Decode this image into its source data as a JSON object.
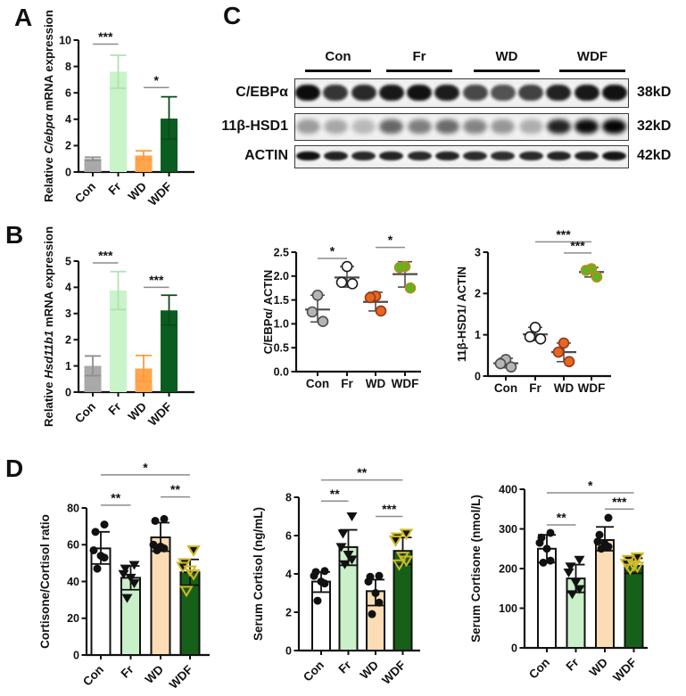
{
  "panels": {
    "A": {
      "label": "A"
    },
    "B": {
      "label": "B"
    },
    "C": {
      "label": "C"
    },
    "D": {
      "label": "D"
    }
  },
  "groups": [
    "Con",
    "Fr",
    "WD",
    "WDF"
  ],
  "blot": {
    "groups": [
      "Con",
      "Fr",
      "WD",
      "WDF"
    ],
    "rows": [
      {
        "protein": "C/EBPα",
        "kd": "38kD",
        "intensities": [
          0.97,
          0.8,
          0.85,
          0.92,
          0.95,
          0.9,
          0.72,
          0.68,
          0.75,
          0.88,
          0.92,
          0.95
        ]
      },
      {
        "protein": "11β-HSD1",
        "kd": "32kD",
        "intensities": [
          0.38,
          0.33,
          0.26,
          0.6,
          0.5,
          0.58,
          0.48,
          0.4,
          0.3,
          0.88,
          0.97,
          1.0
        ]
      },
      {
        "protein": "ACTIN",
        "kd": "42kD",
        "intensities": [
          0.95,
          0.88,
          0.85,
          0.88,
          0.85,
          0.87,
          0.84,
          0.83,
          0.85,
          0.87,
          0.88,
          0.93
        ]
      }
    ]
  },
  "chart_data": [
    {
      "id": "cebpa_mrna",
      "panel": "A",
      "type": "bar",
      "ylabel_parts": [
        {
          "t": "Relative ",
          "i": false
        },
        {
          "t": "C/ebpα",
          "i": true
        },
        {
          "t": " mRNA expression",
          "i": false
        }
      ],
      "categories": [
        "Con",
        "Fr",
        "WD",
        "WDF"
      ],
      "values": [
        1.0,
        7.6,
        1.25,
        4.05
      ],
      "errors": [
        [
          0.88,
          1.12
        ],
        [
          6.35,
          8.85
        ],
        [
          0.95,
          1.6
        ],
        [
          2.5,
          5.7
        ]
      ],
      "ylim": [
        0,
        10
      ],
      "yticks": [
        0,
        2,
        4,
        6,
        8,
        10
      ],
      "ytick_labels": [
        "0",
        "2",
        "4",
        "6",
        "8",
        "10"
      ],
      "bar_colors": [
        "#a9a9a9",
        "#c9f3c9",
        "#ffa54d",
        "#0b5c20"
      ],
      "err_colors": [
        "#8f8f8f",
        "#b2e0b2",
        "#ff9a3c",
        "#0a4a1b"
      ],
      "sig": [
        {
          "from": 0,
          "to": 1,
          "label": "***",
          "y": 9.7
        },
        {
          "from": 2,
          "to": 3,
          "label": "*",
          "y": 6.4
        }
      ]
    },
    {
      "id": "hsd11b1_mrna",
      "panel": "B",
      "type": "bar",
      "ylabel_parts": [
        {
          "t": "Relative ",
          "i": false
        },
        {
          "t": "Hsd11b1",
          "i": true
        },
        {
          "t": " mRNA expression",
          "i": false
        }
      ],
      "categories": [
        "Con",
        "Fr",
        "WD",
        "WDF"
      ],
      "values": [
        1.0,
        3.88,
        0.9,
        3.12
      ],
      "errors": [
        [
          0.63,
          1.38
        ],
        [
          3.15,
          4.6
        ],
        [
          0.42,
          1.4
        ],
        [
          2.56,
          3.7
        ]
      ],
      "ylim": [
        0,
        5
      ],
      "yticks": [
        0,
        1,
        2,
        3,
        4,
        5
      ],
      "ytick_labels": [
        "0",
        "1",
        "2",
        "3",
        "4",
        "5"
      ],
      "bar_colors": [
        "#a9a9a9",
        "#c9f3c9",
        "#ffa54d",
        "#0b5c20"
      ],
      "err_colors": [
        "#8f8f8f",
        "#b2e0b2",
        "#ff9a3c",
        "#0a4a1b"
      ],
      "sig": [
        {
          "from": 0,
          "to": 1,
          "label": "***",
          "y": 4.93
        },
        {
          "from": 2,
          "to": 3,
          "label": "***",
          "y": 4.0
        }
      ]
    },
    {
      "id": "cebpa_actin",
      "panel": "C",
      "type": "scatter",
      "ylabel_parts": [
        {
          "t": "C/EBPα/ ACTIN",
          "i": false
        }
      ],
      "categories": [
        "Con",
        "Fr",
        "WD",
        "WDF"
      ],
      "points": [
        [
          1.6,
          1.25,
          1.05
        ],
        [
          2.2,
          1.87,
          1.84
        ],
        [
          1.58,
          1.55,
          1.27
        ],
        [
          2.2,
          2.18,
          1.75
        ]
      ],
      "means": [
        1.3,
        1.97,
        1.46,
        2.04
      ],
      "errors": [
        [
          1.04,
          1.6
        ],
        [
          1.77,
          2.2
        ],
        [
          1.27,
          1.66
        ],
        [
          1.77,
          2.3
        ]
      ],
      "ylim": [
        0,
        2.5
      ],
      "yticks": [
        0,
        0.5,
        1,
        1.5,
        2,
        2.5
      ],
      "ytick_labels": [
        "0.0",
        "0.5",
        "1.0",
        "1.5",
        "2.0",
        "2.5"
      ],
      "markers": [
        {
          "shape": "circle",
          "fill": "#b5b5b5",
          "stroke": "#4d4d4d"
        },
        {
          "shape": "circle",
          "fill": "#ffffff",
          "stroke": "#1c1c1c"
        },
        {
          "shape": "circle",
          "fill": "#e8671e",
          "stroke": "#93391c"
        },
        {
          "shape": "circle",
          "fill": "#5cb427",
          "stroke": "#c08a14"
        }
      ],
      "sig": [
        {
          "from": 0,
          "to": 1,
          "label": "*",
          "y": 2.37
        },
        {
          "from": 2,
          "to": 3,
          "label": "*",
          "y": 2.6
        }
      ]
    },
    {
      "id": "hsd1_actin",
      "panel": "C",
      "type": "scatter",
      "ylabel_parts": [
        {
          "t": "11β-HSD1/ ACTIN",
          "i": false
        }
      ],
      "categories": [
        "Con",
        "Fr",
        "WD",
        "WDF"
      ],
      "points": [
        [
          0.4,
          0.3,
          0.22
        ],
        [
          1.18,
          0.95,
          0.9
        ],
        [
          0.8,
          0.58,
          0.35
        ],
        [
          2.6,
          2.56,
          2.4
        ]
      ],
      "means": [
        0.31,
        1.01,
        0.58,
        2.52
      ],
      "errors": [
        [
          0.2,
          0.43
        ],
        [
          0.86,
          1.18
        ],
        [
          0.35,
          0.8
        ],
        [
          2.4,
          2.63
        ]
      ],
      "ylim": [
        0,
        3
      ],
      "yticks": [
        0,
        1,
        2,
        3
      ],
      "ytick_labels": [
        "0",
        "1",
        "2",
        "3"
      ],
      "markers": [
        {
          "shape": "circle",
          "fill": "#b5b5b5",
          "stroke": "#4d4d4d"
        },
        {
          "shape": "circle",
          "fill": "#ffffff",
          "stroke": "#1c1c1c"
        },
        {
          "shape": "circle",
          "fill": "#e8671e",
          "stroke": "#93391c"
        },
        {
          "shape": "circle",
          "fill": "#5cb427",
          "stroke": "#c08a14"
        }
      ],
      "sig": [
        {
          "from": 1,
          "to": 3,
          "label": "***",
          "y": 3.25
        },
        {
          "from": 2,
          "to": 3,
          "label": "***",
          "y": 2.98
        }
      ]
    },
    {
      "id": "cort_ratio",
      "panel": "D",
      "type": "bar-scatter",
      "ylabel_parts": [
        {
          "t": "Cortisone/Cortisol ratio",
          "i": false
        }
      ],
      "categories": [
        "Con",
        "Fr",
        "WD",
        "WDF"
      ],
      "values": [
        58,
        42,
        64,
        45
      ],
      "errors": [
        [
          49.5,
          67
        ],
        [
          35.5,
          48.5
        ],
        [
          56.5,
          72
        ],
        [
          38,
          52
        ]
      ],
      "points": [
        [
          71,
          67,
          57,
          54,
          53,
          47
        ],
        [
          49,
          47,
          44,
          42,
          39,
          31
        ],
        [
          74,
          73,
          60,
          59,
          58,
          57
        ],
        [
          57,
          50,
          48,
          46,
          44,
          35
        ]
      ],
      "ylim": [
        0,
        80
      ],
      "yticks": [
        0,
        20,
        40,
        60,
        80
      ],
      "ytick_labels": [
        "0",
        "20",
        "40",
        "60",
        "80"
      ],
      "bar_colors": [
        "#ffffff",
        "#c9f0c9",
        "#fbdcb4",
        "#176019"
      ],
      "bar_outline": "#111111",
      "markers": [
        {
          "shape": "circle",
          "fill": "#111111",
          "stroke": "none"
        },
        {
          "shape": "tri",
          "fill": "#111111",
          "stroke": "none"
        },
        {
          "shape": "circle",
          "fill": "#111111",
          "stroke": "none"
        },
        {
          "shape": "tri",
          "fill": "#151508",
          "stroke": "#cdb92a",
          "open_points": [
            3,
            4,
            5
          ]
        }
      ],
      "sig": [
        {
          "from": 0,
          "to": 1,
          "label": "**",
          "y": 81.5
        },
        {
          "from": 2,
          "to": 3,
          "label": "**",
          "y": 86
        },
        {
          "from": 0,
          "to": 3,
          "label": "*",
          "y": 98
        }
      ]
    },
    {
      "id": "serum_cortisol",
      "panel": "D",
      "type": "bar-scatter",
      "ylabel_parts": [
        {
          "t": "Serum Cortisol (ng/mL)",
          "i": false
        }
      ],
      "categories": [
        "Con",
        "Fr",
        "WD",
        "WDF"
      ],
      "values": [
        3.6,
        5.4,
        3.1,
        5.2
      ],
      "errors": [
        [
          3.05,
          4.1
        ],
        [
          4.45,
          6.3
        ],
        [
          2.35,
          3.7
        ],
        [
          4.5,
          5.9
        ]
      ],
      "points": [
        [
          4.15,
          4.1,
          3.9,
          3.6,
          3.5,
          2.6
        ],
        [
          7.0,
          6.1,
          5.4,
          5.0,
          4.75,
          4.5
        ],
        [
          3.9,
          3.85,
          3.6,
          3.0,
          2.5,
          1.9
        ],
        [
          6.1,
          5.9,
          5.75,
          4.9,
          4.7,
          4.5
        ]
      ],
      "ylim": [
        0,
        8
      ],
      "yticks": [
        0,
        2,
        4,
        6,
        8
      ],
      "ytick_labels": [
        "0",
        "2",
        "4",
        "6",
        "8"
      ],
      "bar_colors": [
        "#ffffff",
        "#c9f0c9",
        "#fbdcb4",
        "#176019"
      ],
      "bar_outline": "#111111",
      "markers": [
        {
          "shape": "circle",
          "fill": "#111111",
          "stroke": "none"
        },
        {
          "shape": "tri",
          "fill": "#111111",
          "stroke": "none"
        },
        {
          "shape": "circle",
          "fill": "#111111",
          "stroke": "none"
        },
        {
          "shape": "tri",
          "fill": "#151508",
          "stroke": "#cdb92a",
          "open_points": [
            3,
            4,
            5
          ]
        }
      ],
      "sig": [
        {
          "from": 0,
          "to": 1,
          "label": "**",
          "y": 7.8
        },
        {
          "from": 2,
          "to": 3,
          "label": "***",
          "y": 7.0
        },
        {
          "from": 0,
          "to": 3,
          "label": "**",
          "y": 8.9
        }
      ]
    },
    {
      "id": "serum_cortisone",
      "panel": "D",
      "type": "bar-scatter",
      "ylabel_parts": [
        {
          "t": "Serum Cortisone (nmol/L)",
          "i": false
        }
      ],
      "categories": [
        "Con",
        "Fr",
        "WD",
        "WDF"
      ],
      "values": [
        250,
        175,
        272,
        207
      ],
      "errors": [
        [
          215,
          285
        ],
        [
          140,
          210
        ],
        [
          245,
          305
        ],
        [
          188,
          226
        ]
      ],
      "points": [
        [
          290,
          278,
          265,
          250,
          220,
          215
        ],
        [
          222,
          205,
          190,
          165,
          148,
          135
        ],
        [
          328,
          285,
          268,
          262,
          255,
          250
        ],
        [
          228,
          222,
          212,
          208,
          205,
          200
        ]
      ],
      "ylim": [
        0,
        400
      ],
      "yticks": [
        0,
        100,
        200,
        300,
        400
      ],
      "ytick_labels": [
        "0",
        "100",
        "200",
        "300",
        "400"
      ],
      "bar_colors": [
        "#ffffff",
        "#c9f0c9",
        "#fbdcb4",
        "#176019"
      ],
      "bar_outline": "#111111",
      "markers": [
        {
          "shape": "circle",
          "fill": "#111111",
          "stroke": "none"
        },
        {
          "shape": "tri",
          "fill": "#111111",
          "stroke": "none"
        },
        {
          "shape": "circle",
          "fill": "#111111",
          "stroke": "none"
        },
        {
          "shape": "tri",
          "fill": "#151508",
          "stroke": "#cdb92a",
          "open_points": [
            3,
            4,
            5
          ]
        }
      ],
      "sig": [
        {
          "from": 0,
          "to": 1,
          "label": "**",
          "y": 310
        },
        {
          "from": 2,
          "to": 3,
          "label": "***",
          "y": 350
        },
        {
          "from": 0,
          "to": 3,
          "label": "*",
          "y": 391
        }
      ]
    }
  ]
}
